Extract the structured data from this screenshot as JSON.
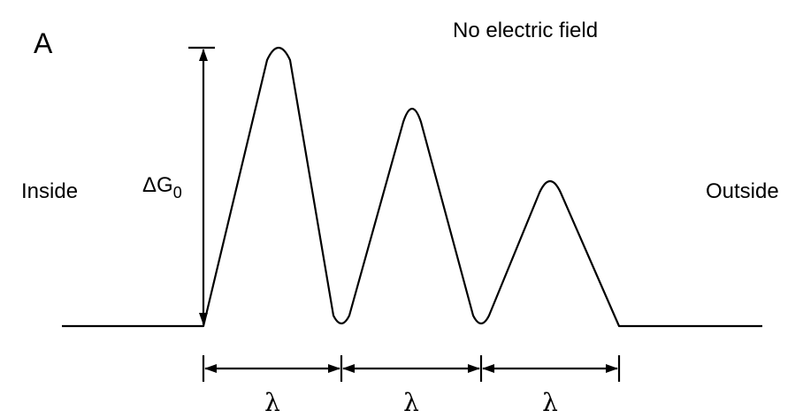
{
  "panel_label": "A",
  "title": "No electric field",
  "inside_label": "Inside",
  "outside_label": "Outside",
  "barrier_label": {
    "symbol": "ΔG",
    "subscript": "0"
  },
  "spacing_labels": [
    "λ",
    "λ",
    "λ"
  ]
}
